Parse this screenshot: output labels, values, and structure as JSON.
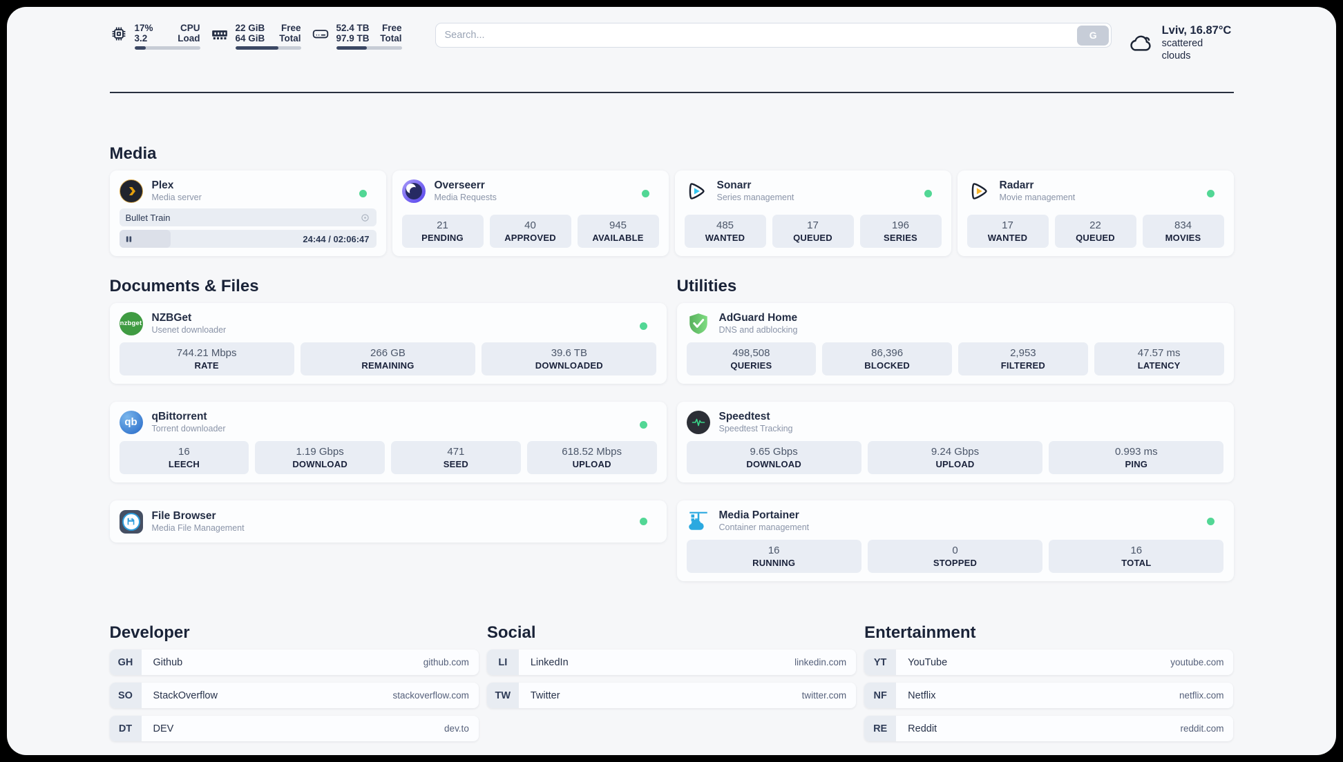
{
  "colors": {
    "accent_green": "#52d795",
    "navy_text": "#26304a",
    "tile_bg": "#e9edf4",
    "panel_bg": "#f6f7f9"
  },
  "header": {
    "cpu": {
      "line1_value": "17%",
      "line1_label": "CPU",
      "line2_value": "3.2",
      "line2_label": "Load",
      "progress_pct": 17
    },
    "ram": {
      "line1_value": "22 GiB",
      "line1_label": "Free",
      "line2_value": "64 GiB",
      "line2_label": "Total",
      "progress_pct": 66
    },
    "disk": {
      "line1_value": "52.4 TB",
      "line1_label": "Free",
      "line2_value": "97.9 TB",
      "line2_label": "Total",
      "progress_pct": 47
    },
    "search": {
      "placeholder": "Search...",
      "button": "G"
    },
    "weather": {
      "title": "Lviv, 16.87°C",
      "subtitle": "scattered clouds"
    }
  },
  "media": {
    "heading": "Media",
    "plex": {
      "name": "Plex",
      "desc": "Media server",
      "now_playing": "Bullet Train",
      "time": "24:44 / 02:06:47",
      "progress_pct": 20
    },
    "overseerr": {
      "name": "Overseerr",
      "desc": "Media Requests",
      "stats": [
        {
          "value": "21",
          "label": "PENDING"
        },
        {
          "value": "40",
          "label": "APPROVED"
        },
        {
          "value": "945",
          "label": "AVAILABLE"
        }
      ]
    },
    "sonarr": {
      "name": "Sonarr",
      "desc": "Series management",
      "stats": [
        {
          "value": "485",
          "label": "WANTED"
        },
        {
          "value": "17",
          "label": "QUEUED"
        },
        {
          "value": "196",
          "label": "SERIES"
        }
      ]
    },
    "radarr": {
      "name": "Radarr",
      "desc": "Movie management",
      "stats": [
        {
          "value": "17",
          "label": "WANTED"
        },
        {
          "value": "22",
          "label": "QUEUED"
        },
        {
          "value": "834",
          "label": "MOVIES"
        }
      ]
    }
  },
  "documents": {
    "heading": "Documents & Files",
    "nzbget": {
      "name": "NZBGet",
      "desc": "Usenet downloader",
      "logo_text": "nzbget",
      "stats": [
        {
          "value": "744.21 Mbps",
          "label": "RATE"
        },
        {
          "value": "266 GB",
          "label": "REMAINING"
        },
        {
          "value": "39.6 TB",
          "label": "DOWNLOADED"
        }
      ]
    },
    "qbittorrent": {
      "name": "qBittorrent",
      "desc": "Torrent downloader",
      "logo_text": "qb",
      "stats": [
        {
          "value": "16",
          "label": "LEECH"
        },
        {
          "value": "1.19 Gbps",
          "label": "DOWNLOAD"
        },
        {
          "value": "471",
          "label": "SEED"
        },
        {
          "value": "618.52 Mbps",
          "label": "UPLOAD"
        }
      ]
    },
    "filebrowser": {
      "name": "File Browser",
      "desc": "Media File Management"
    }
  },
  "utilities": {
    "heading": "Utilities",
    "adguard": {
      "name": "AdGuard Home",
      "desc": "DNS and adblocking",
      "stats": [
        {
          "value": "498,508",
          "label": "QUERIES"
        },
        {
          "value": "86,396",
          "label": "BLOCKED"
        },
        {
          "value": "2,953",
          "label": "FILTERED"
        },
        {
          "value": "47.57 ms",
          "label": "LATENCY"
        }
      ]
    },
    "speedtest": {
      "name": "Speedtest",
      "desc": "Speedtest Tracking",
      "stats": [
        {
          "value": "9.65 Gbps",
          "label": "DOWNLOAD"
        },
        {
          "value": "9.24 Gbps",
          "label": "UPLOAD"
        },
        {
          "value": "0.993 ms",
          "label": "PING"
        }
      ]
    },
    "portainer": {
      "name": "Media Portainer",
      "desc": "Container management",
      "stats": [
        {
          "value": "16",
          "label": "RUNNING"
        },
        {
          "value": "0",
          "label": "STOPPED"
        },
        {
          "value": "16",
          "label": "TOTAL"
        }
      ]
    }
  },
  "links": {
    "developer": {
      "heading": "Developer",
      "items": [
        {
          "abbr": "GH",
          "name": "Github",
          "url": "github.com"
        },
        {
          "abbr": "SO",
          "name": "StackOverflow",
          "url": "stackoverflow.com"
        },
        {
          "abbr": "DT",
          "name": "DEV",
          "url": "dev.to"
        }
      ]
    },
    "social": {
      "heading": "Social",
      "items": [
        {
          "abbr": "LI",
          "name": "LinkedIn",
          "url": "linkedin.com"
        },
        {
          "abbr": "TW",
          "name": "Twitter",
          "url": "twitter.com"
        }
      ]
    },
    "entertainment": {
      "heading": "Entertainment",
      "items": [
        {
          "abbr": "YT",
          "name": "YouTube",
          "url": "youtube.com"
        },
        {
          "abbr": "NF",
          "name": "Netflix",
          "url": "netflix.com"
        },
        {
          "abbr": "RE",
          "name": "Reddit",
          "url": "reddit.com"
        }
      ]
    }
  }
}
